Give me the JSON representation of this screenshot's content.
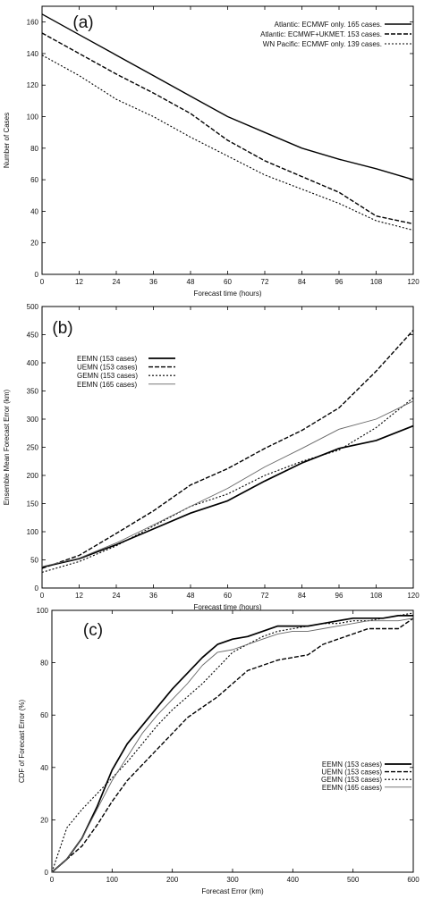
{
  "chart_data": [
    {
      "type": "line",
      "panel_label": "(a)",
      "xlabel": "Forecast time (hours)",
      "ylabel": "Number of Cases",
      "xlim": [
        0,
        120
      ],
      "ylim": [
        0,
        170
      ],
      "x_ticks": [
        0,
        12,
        24,
        36,
        48,
        60,
        72,
        84,
        96,
        108,
        120
      ],
      "y_ticks": [
        0,
        20,
        40,
        60,
        80,
        100,
        120,
        140,
        160
      ],
      "legend_position": "top-right",
      "series": [
        {
          "name": "Atlantic: ECMWF only.  165 cases.",
          "style": "solid",
          "x": [
            0,
            12,
            24,
            36,
            48,
            60,
            72,
            84,
            96,
            108,
            120
          ],
          "y": [
            165,
            152,
            139,
            126,
            113,
            100,
            90,
            80,
            73,
            67,
            60
          ]
        },
        {
          "name": "Atlantic: ECMWF+UKMET.  153 cases.",
          "style": "dashed",
          "x": [
            0,
            12,
            24,
            36,
            48,
            60,
            72,
            84,
            96,
            108,
            120
          ],
          "y": [
            153,
            140,
            127,
            115,
            102,
            85,
            72,
            62,
            52,
            37,
            32
          ]
        },
        {
          "name": "WN Pacific: ECMWF only.  139 cases.",
          "style": "dotted",
          "x": [
            0,
            12,
            24,
            36,
            48,
            60,
            72,
            84,
            96,
            108,
            120
          ],
          "y": [
            139,
            126,
            111,
            100,
            87,
            75,
            63,
            54,
            45,
            34,
            28
          ]
        }
      ]
    },
    {
      "type": "line",
      "panel_label": "(b)",
      "xlabel": "Forecast time (hours)",
      "ylabel": "Ensemble Mean Forecast Error (km)",
      "xlim": [
        0,
        120
      ],
      "ylim": [
        0,
        500
      ],
      "x_ticks": [
        0,
        12,
        24,
        36,
        48,
        60,
        72,
        84,
        96,
        108,
        120
      ],
      "y_ticks": [
        0,
        50,
        100,
        150,
        200,
        250,
        300,
        350,
        400,
        450,
        500
      ],
      "legend_position": "upper-left",
      "series": [
        {
          "name": "EEMN (153 cases)",
          "style": "solid-thick",
          "x": [
            0,
            12,
            24,
            36,
            48,
            60,
            72,
            84,
            96,
            108,
            120
          ],
          "y": [
            37,
            52,
            77,
            105,
            133,
            155,
            190,
            222,
            248,
            262,
            288
          ]
        },
        {
          "name": "UEMN (153 cases)",
          "style": "dashed",
          "x": [
            0,
            12,
            24,
            36,
            48,
            60,
            72,
            84,
            96,
            108,
            120
          ],
          "y": [
            35,
            58,
            97,
            137,
            183,
            212,
            248,
            280,
            320,
            385,
            458
          ]
        },
        {
          "name": "GEMN (153 cases)",
          "style": "dotted",
          "x": [
            0,
            12,
            24,
            36,
            48,
            60,
            72,
            84,
            96,
            108,
            120
          ],
          "y": [
            28,
            47,
            75,
            110,
            145,
            167,
            200,
            225,
            245,
            285,
            338
          ]
        },
        {
          "name": "EEMN (165 cases)",
          "style": "solid-thin",
          "x": [
            0,
            12,
            24,
            36,
            48,
            60,
            72,
            84,
            96,
            108,
            120
          ],
          "y": [
            38,
            53,
            80,
            112,
            145,
            177,
            215,
            248,
            282,
            300,
            332
          ]
        }
      ]
    },
    {
      "type": "line",
      "panel_label": "(c)",
      "xlabel": "Forecast Error (km)",
      "ylabel": "CDF of Forecast Error (%)",
      "xlim": [
        0,
        600
      ],
      "ylim": [
        0,
        100
      ],
      "x_ticks": [
        0,
        100,
        200,
        300,
        400,
        500,
        600
      ],
      "y_ticks": [
        0,
        20,
        40,
        60,
        80,
        100
      ],
      "legend_position": "lower-right",
      "series": [
        {
          "name": "EEMN (153 cases)",
          "style": "solid-thick",
          "x": [
            0,
            25,
            50,
            75,
            100,
            125,
            150,
            175,
            200,
            225,
            250,
            275,
            300,
            325,
            350,
            375,
            400,
            425,
            450,
            475,
            500,
            525,
            550,
            575,
            600
          ],
          "y": [
            0,
            5,
            13,
            25,
            39,
            49,
            56,
            63,
            70,
            76,
            82,
            87,
            89,
            90,
            92,
            94,
            94,
            94,
            95,
            96,
            97,
            97,
            97,
            98,
            98
          ]
        },
        {
          "name": "UEMN (153 cases)",
          "style": "dashed",
          "x": [
            0,
            25,
            50,
            75,
            100,
            125,
            150,
            175,
            200,
            225,
            250,
            275,
            300,
            325,
            350,
            375,
            400,
            425,
            450,
            475,
            500,
            525,
            550,
            575,
            600
          ],
          "y": [
            0,
            5,
            10,
            18,
            27,
            35,
            41,
            47,
            53,
            59,
            63,
            67,
            72,
            77,
            79,
            81,
            82,
            83,
            87,
            89,
            91,
            93,
            93,
            93,
            97
          ]
        },
        {
          "name": "GEMN (153 cases)",
          "style": "dotted",
          "x": [
            0,
            25,
            50,
            75,
            100,
            125,
            150,
            175,
            200,
            225,
            250,
            275,
            300,
            325,
            350,
            375,
            400,
            425,
            450,
            475,
            500,
            525,
            550,
            575,
            600
          ],
          "y": [
            0,
            17,
            24,
            30,
            36,
            42,
            49,
            56,
            62,
            67,
            72,
            78,
            84,
            87,
            90,
            92,
            93,
            94,
            95,
            95,
            96,
            96,
            97,
            98,
            99
          ]
        },
        {
          "name": "EEMN (165 cases)",
          "style": "solid-thin",
          "x": [
            0,
            25,
            50,
            75,
            100,
            125,
            150,
            175,
            200,
            225,
            250,
            275,
            300,
            325,
            350,
            375,
            400,
            425,
            450,
            475,
            500,
            525,
            550,
            575,
            600
          ],
          "y": [
            0,
            5,
            13,
            24,
            35,
            44,
            53,
            60,
            66,
            72,
            79,
            84,
            85,
            87,
            89,
            91,
            92,
            92,
            93,
            94,
            95,
            96,
            96,
            96,
            97
          ]
        }
      ]
    }
  ]
}
